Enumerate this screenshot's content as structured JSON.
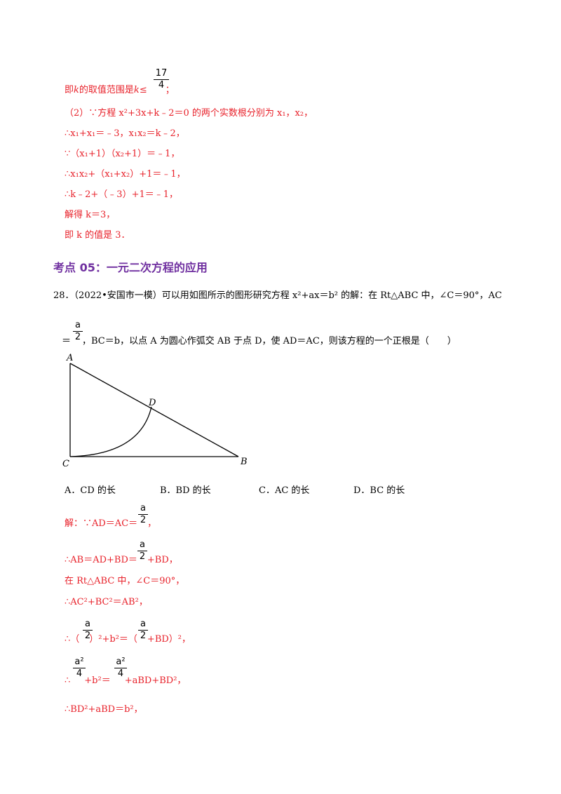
{
  "solution_top": {
    "line1_prefix": "即",
    "line1_k": "k",
    "line1_mid": "的取值范围是",
    "line1_k2": "k",
    "line1_leq": "≤",
    "line1_frac_num": "17",
    "line1_frac_den": "4",
    "line1_end": "；",
    "line2": "（2）∵方程 x²+3x+k﹣2＝0 的两个实数根分别为 x₁，x₂，",
    "line3": "∴x₁+x₁＝﹣3，x₁x₂＝k﹣2，",
    "line4": "∵（x₁+1）（x₂+1）＝﹣1，",
    "line5": "∴x₁x₂+（x₁+x₂）+1＝﹣1，",
    "line6": "∴k﹣2+（﹣3）+1＝﹣1，",
    "line7": "解得 k＝3，",
    "line8": "即 k 的值是 3．"
  },
  "section_heading": "考点 05：一元二次方程的应用",
  "question": {
    "number": "28．",
    "line1": "（2022•安国市一模）可以用如图所示的图形研究方程 x²+ax＝b² 的解：在 Rt△ABC 中，∠C＝90°，AC",
    "line2_eq": "＝",
    "frac_num": "a",
    "frac_den": "2",
    "line2_rest": "，BC＝b，以点 A 为圆心作弧交 AB 于点 D，使 AD＝AC，则该方程的一个正根是（　　）"
  },
  "figure": {
    "label_a": "A",
    "label_b": "B",
    "label_c": "C",
    "label_d": "D"
  },
  "options": {
    "a": "A．CD 的长",
    "b": "B．BD 的长",
    "c": "C．AC 的长",
    "d": "D．BC 的长"
  },
  "solution_bottom": {
    "s1_pre": "解：∵AD＝AC＝",
    "s1_post": "，",
    "s2_pre": "∴AB＝AD+BD＝",
    "s2_post": "+BD，",
    "s3": "在 Rt△ABC 中，∠C＝90°，",
    "s4": "∴AC²+BC²＝AB²，",
    "s5_pre": "∴（",
    "s5_mid": "）²+b²＝（",
    "s5_post": "+BD）²，",
    "s6_pre": "∴",
    "s6_mid": "+b²＝",
    "s6_post": "+aBD+BD²，",
    "s7": "∴BD²+aBD＝b²，",
    "frac_a": "a",
    "frac_2": "2",
    "frac_a2": "a²",
    "frac_4": "4"
  }
}
